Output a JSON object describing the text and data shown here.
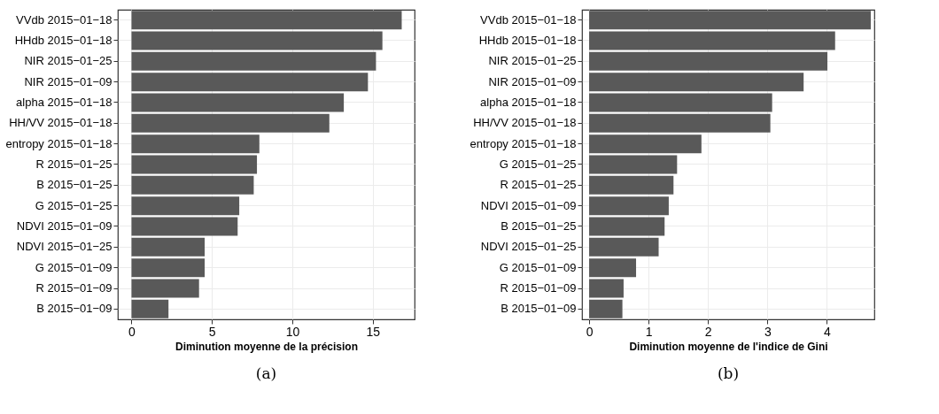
{
  "chart_data": [
    {
      "type": "bar",
      "orientation": "horizontal",
      "categories": [
        "VVdb 2015−01−18",
        "HHdb 2015−01−18",
        "NIR 2015−01−25",
        "NIR 2015−01−09",
        "alpha 2015−01−18",
        "HH/VV 2015−01−18",
        "entropy 2015−01−18",
        "R 2015−01−25",
        "B 2015−01−25",
        "G 2015−01−25",
        "NDVI 2015−01−09",
        "NDVI 2015−01−25",
        "G 2015−01−09",
        "R 2015−01−09",
        "B 2015−01−09"
      ],
      "values": [
        16.8,
        15.6,
        15.2,
        14.7,
        13.2,
        12.3,
        7.95,
        7.8,
        7.6,
        6.7,
        6.6,
        4.55,
        4.55,
        4.2,
        2.3
      ],
      "color": "#595959",
      "xlim": [
        -0.85,
        17.6
      ],
      "xticks": [
        0,
        5,
        10,
        15
      ],
      "grid": true,
      "xlabel": "Diminution moyenne de la précision",
      "annotations": [
        "(a)"
      ]
    },
    {
      "type": "bar",
      "orientation": "horizontal",
      "categories": [
        "VVdb 2015−01−18",
        "HHdb 2015−01−18",
        "NIR 2015−01−25",
        "NIR 2015−01−09",
        "alpha 2015−01−18",
        "HH/VV 2015−01−18",
        "entropy 2015−01−18",
        "G 2015−01−25",
        "R 2015−01−25",
        "NDVI 2015−01−09",
        "B 2015−01−25",
        "NDVI 2015−01−25",
        "G 2015−01−09",
        "R 2015−01−09",
        "B 2015−01−09"
      ],
      "values": [
        4.74,
        4.14,
        4.01,
        3.61,
        3.08,
        3.05,
        1.89,
        1.48,
        1.42,
        1.34,
        1.27,
        1.17,
        0.79,
        0.58,
        0.56
      ],
      "color": "#595959",
      "xlim": [
        -0.12,
        4.8
      ],
      "xticks": [
        0,
        1,
        2,
        3,
        4
      ],
      "grid": true,
      "xlabel": "Diminution moyenne de l'indice de Gini",
      "annotations": [
        "(b)"
      ]
    }
  ]
}
